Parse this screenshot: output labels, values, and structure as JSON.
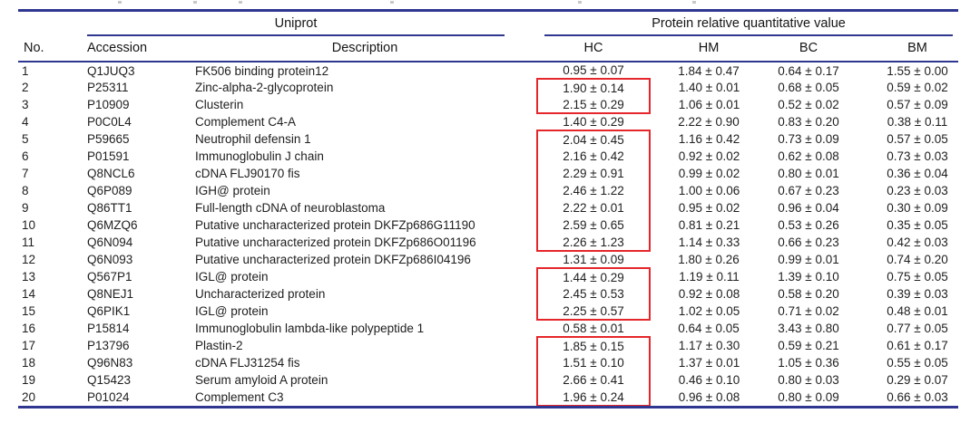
{
  "table": {
    "group_headers": {
      "uniprot": "Uniprot",
      "quant": "Protein relative quantitative value"
    },
    "columns": {
      "no": "No.",
      "accession": "Accession",
      "description": "Description",
      "hc": "HC",
      "hm": "HM",
      "bc": "BC",
      "bm": "BM"
    },
    "rows": [
      {
        "no": "1",
        "accession": "Q1JUQ3",
        "description": "FK506 binding protein12",
        "hc": "0.95 ± 0.07",
        "hm": "1.84 ± 0.47",
        "bc": "0.64 ± 0.17",
        "bm": "1.55 ± 0.00"
      },
      {
        "no": "2",
        "accession": "P25311",
        "description": "Zinc-alpha-2-glycoprotein",
        "hc": "1.90 ± 0.14",
        "hm": "1.40 ± 0.01",
        "bc": "0.68 ± 0.05",
        "bm": "0.59 ± 0.02"
      },
      {
        "no": "3",
        "accession": "P10909",
        "description": "Clusterin",
        "hc": "2.15 ± 0.29",
        "hm": "1.06 ± 0.01",
        "bc": "0.52 ± 0.02",
        "bm": "0.57 ± 0.09"
      },
      {
        "no": "4",
        "accession": "P0C0L4",
        "description": "Complement C4-A",
        "hc": "1.40 ± 0.29",
        "hm": "2.22 ± 0.90",
        "bc": "0.83 ± 0.20",
        "bm": "0.38 ± 0.11"
      },
      {
        "no": "5",
        "accession": "P59665",
        "description": "Neutrophil defensin 1",
        "hc": "2.04 ± 0.45",
        "hm": "1.16 ± 0.42",
        "bc": "0.73 ± 0.09",
        "bm": "0.57 ± 0.05"
      },
      {
        "no": "6",
        "accession": "P01591",
        "description": "Immunoglobulin J chain",
        "hc": "2.16 ± 0.42",
        "hm": "0.92 ± 0.02",
        "bc": "0.62 ± 0.08",
        "bm": "0.73 ± 0.03"
      },
      {
        "no": "7",
        "accession": "Q8NCL6",
        "description": "cDNA FLJ90170 fis",
        "hc": "2.29 ± 0.91",
        "hm": "0.99 ± 0.02",
        "bc": "0.80 ± 0.01",
        "bm": "0.36 ± 0.04"
      },
      {
        "no": "8",
        "accession": "Q6P089",
        "description": "IGH@ protein",
        "hc": "2.46 ± 1.22",
        "hm": "1.00 ± 0.06",
        "bc": "0.67 ± 0.23",
        "bm": "0.23 ± 0.03"
      },
      {
        "no": "9",
        "accession": "Q86TT1",
        "description": "Full-length cDNA of neuroblastoma",
        "hc": "2.22 ± 0.01",
        "hm": "0.95 ± 0.02",
        "bc": "0.96 ± 0.04",
        "bm": "0.30 ± 0.09"
      },
      {
        "no": "10",
        "accession": "Q6MZQ6",
        "description": "Putative uncharacterized protein DKFZp686G11190",
        "hc": "2.59 ± 0.65",
        "hm": "0.81 ± 0.21",
        "bc": "0.53 ± 0.26",
        "bm": "0.35 ± 0.05"
      },
      {
        "no": "11",
        "accession": "Q6N094",
        "description": "Putative uncharacterized protein DKFZp686O01196",
        "hc": "2.26 ± 1.23",
        "hm": "1.14 ± 0.33",
        "bc": "0.66 ± 0.23",
        "bm": "0.42 ± 0.03"
      },
      {
        "no": "12",
        "accession": "Q6N093",
        "description": "Putative uncharacterized protein DKFZp686I04196",
        "hc": "1.31 ± 0.09",
        "hm": "1.80 ± 0.26",
        "bc": "0.99 ± 0.01",
        "bm": "0.74 ± 0.20"
      },
      {
        "no": "13",
        "accession": "Q567P1",
        "description": "IGL@ protein",
        "hc": "1.44 ± 0.29",
        "hm": "1.19 ± 0.11",
        "bc": "1.39 ± 0.10",
        "bm": "0.75 ± 0.05"
      },
      {
        "no": "14",
        "accession": "Q8NEJ1",
        "description": "Uncharacterized protein",
        "hc": "2.45 ± 0.53",
        "hm": "0.92 ± 0.08",
        "bc": "0.58 ± 0.20",
        "bm": "0.39 ± 0.03"
      },
      {
        "no": "15",
        "accession": "Q6PIK1",
        "description": "IGL@ protein",
        "hc": "2.25 ± 0.57",
        "hm": "1.02 ± 0.05",
        "bc": "0.71 ± 0.02",
        "bm": "0.48 ± 0.01"
      },
      {
        "no": "16",
        "accession": "P15814",
        "description": "Immunoglobulin lambda-like polypeptide 1",
        "hc": "0.58 ± 0.01",
        "hm": "0.64 ± 0.05",
        "bc": "3.43 ± 0.80",
        "bm": "0.77 ± 0.05"
      },
      {
        "no": "17",
        "accession": "P13796",
        "description": "Plastin-2",
        "hc": "1.85 ± 0.15",
        "hm": "1.17 ± 0.30",
        "bc": "0.59 ± 0.21",
        "bm": "0.61 ± 0.17"
      },
      {
        "no": "18",
        "accession": "Q96N83",
        "description": "cDNA FLJ31254 fis",
        "hc": "1.51 ± 0.10",
        "hm": "1.37 ± 0.01",
        "bc": "1.05 ± 0.36",
        "bm": "0.55 ± 0.05"
      },
      {
        "no": "19",
        "accession": "Q15423",
        "description": "Serum amyloid A protein",
        "hc": "2.66 ± 0.41",
        "hm": "0.46 ± 0.10",
        "bc": "0.80 ± 0.03",
        "bm": "0.29 ± 0.07"
      },
      {
        "no": "20",
        "accession": "P01024",
        "description": "Complement C3",
        "hc": "1.96 ± 0.24",
        "hm": "0.96 ± 0.08",
        "bc": "0.80 ± 0.09",
        "bm": "0.66 ± 0.03"
      }
    ],
    "hc_highlight_groups": [
      [
        2,
        3
      ],
      [
        5,
        11
      ],
      [
        13,
        15
      ],
      [
        17,
        20
      ]
    ],
    "colors": {
      "rule": "#2f3690",
      "highlight_box": "#e5262b",
      "text": "#1e1e1e"
    }
  }
}
